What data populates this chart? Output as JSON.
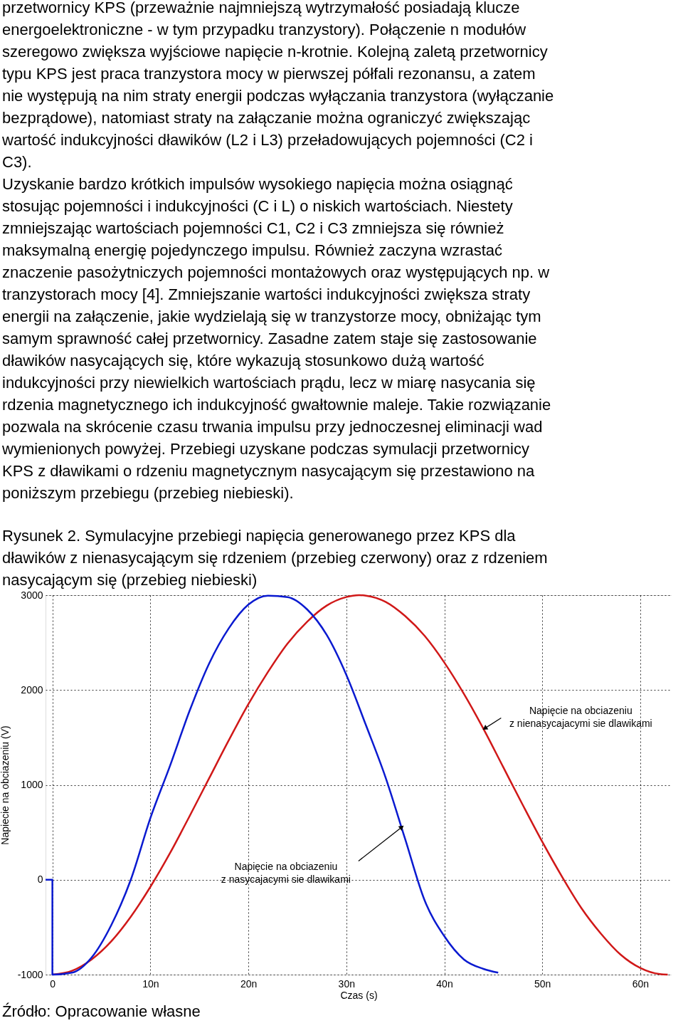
{
  "chart_data": {
    "type": "line",
    "title": "Rysunek 2. Symulacyjne przebiegi napięcia generowanego przez KPS dla dławików z nienasycającym się rdzeniem (przebieg czerwony) oraz z rdzeniem nasycającym się (przebieg niebieski)",
    "xlabel": "Czas (s)",
    "ylabel": "Napiecie na obciazeniu (V)",
    "xlim": [
      -0.7,
      63.2
    ],
    "ylim": [
      -1000,
      3000
    ],
    "xticks": [
      0,
      {
        "value": 10,
        "label": "10n"
      },
      {
        "value": 20,
        "label": "20n"
      },
      {
        "value": 30,
        "label": "30n"
      },
      {
        "value": 40,
        "label": "40n"
      },
      {
        "value": 50,
        "label": "50n"
      },
      {
        "value": 60,
        "label": "60n"
      }
    ],
    "yticks": [
      -1000,
      0,
      1000,
      2000,
      3000
    ],
    "grid": true,
    "line_style": "solid",
    "marker": "none",
    "series": [
      {
        "color": "#d01818",
        "x": [
          0,
          2,
          4,
          6,
          8,
          10,
          12,
          14,
          16,
          18,
          20,
          22,
          24,
          26,
          28,
          30,
          31.3,
          32,
          34,
          36,
          38,
          40,
          42,
          44,
          46,
          48,
          50,
          52,
          54,
          56,
          58,
          60,
          62,
          62.8
        ],
        "values": [
          -1000,
          -960,
          -840,
          -650,
          -390,
          -75,
          280,
          670,
          1070,
          1470,
          1850,
          2190,
          2490,
          2720,
          2890,
          2980,
          3000,
          2995,
          2930,
          2780,
          2570,
          2290,
          1960,
          1590,
          1190,
          790,
          400,
          35,
          -300,
          -570,
          -790,
          -930,
          -995,
          -1000
        ]
      },
      {
        "color": "#0a1ad0",
        "x": [
          -0.7,
          0,
          0,
          2,
          4,
          6,
          8,
          10,
          12,
          14,
          16,
          18,
          20,
          22,
          24,
          26,
          28,
          30,
          32,
          34,
          36,
          38,
          40,
          42,
          44,
          45.5
        ],
        "values": [
          0,
          0,
          -1000,
          -980,
          -820,
          -480,
          0,
          650,
          1200,
          1780,
          2280,
          2650,
          2900,
          2995,
          2980,
          2850,
          2580,
          2160,
          1630,
          1080,
          430,
          -220,
          -595,
          -840,
          -940,
          -980
        ]
      }
    ],
    "annotations": [
      "przetwornicy KPS (przeważnie najmniejszą wytrzymałość posiadają klucze",
      "energoelektroniczne - w tym przypadku tranzystory). Połączenie n modułów",
      "szeregowo zwiększa wyjściowe napięcie n-krotnie. Kolejną zaletą przetwornicy",
      "typu KPS jest praca tranzystora mocy w pierwszej półfali rezonansu, a zatem",
      "nie występują na nim straty energii podczas wyłączania tranzystora (wyłączanie",
      "bezprądowe), natomiast straty na załączanie można ograniczyć zwiększając",
      "wartość indukcyjności dławików (L2 i L3) przeładowujących pojemności (C2 i",
      "C3).",
      "Uzyskanie bardzo krótkich impulsów wysokiego napięcia można osiągnąć",
      "stosując pojemności i indukcyjności (C i L) o niskich wartościach. Niestety",
      "zmniejszając wartościach pojemności C1, C2 i C3 zmniejsza się również",
      "maksymalną energię pojedynczego impulsu. Również zaczyna wzrastać",
      "znaczenie pasożytniczych pojemności montażowych oraz występujących np. w",
      "tranzystorach mocy [4]. Zmniejszanie wartości indukcyjności zwiększa straty",
      "energii na załączenie, jakie wydzielają się w tranzystorze mocy, obniżając tym",
      "samym sprawność całej przetwornicy. Zasadne zatem staje się zastosowanie",
      "dławików nasycających się, które wykazują stosunkowo dużą wartość",
      "indukcyjności przy niewielkich wartościach prądu, lecz w miarę nasycania się",
      "rdzenia magnetycznego ich indukcyjność gwałtownie maleje. Takie rozwiązanie",
      "pozwala na skrócenie czasu trwania impulsu przy jednoczesnej eliminacji wad",
      "wymienionych powyżej. Przebiegi uzyskane podczas symulacji przetwornicy",
      "KPS z dławikami o rdzeniu magnetycznym nasycającym się przestawiono na",
      "poniższym przebiegu (przebieg niebieski).",
      {
        "text": "Napięcie na obciazeniu\nz nienasycajacymi sie dlawikami",
        "x": 44.2,
        "y": 1600
      },
      {
        "text": "Napięcie na obciazeniu\nz nasycajacymi sie dlawikami",
        "x": 35.6,
        "y": 550
      },
      "Źródło: Opracowanie własne"
    ]
  }
}
